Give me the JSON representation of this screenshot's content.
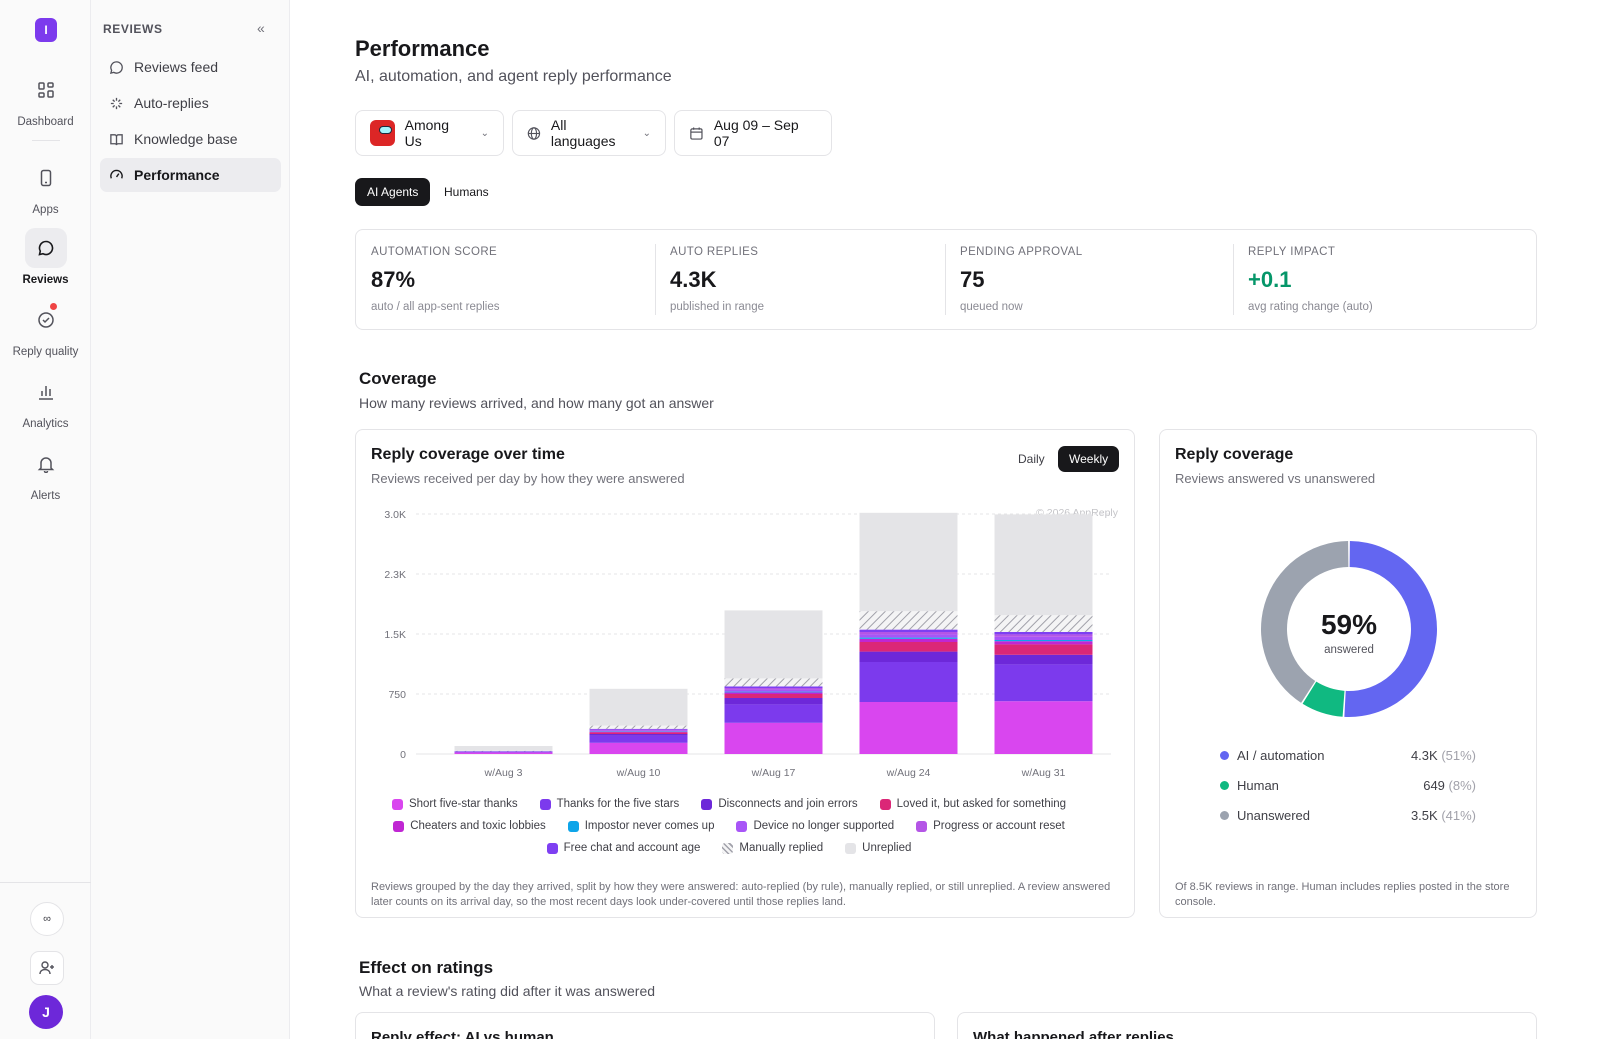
{
  "rail": {
    "logo": "I",
    "items": [
      {
        "label": "Dashboard",
        "icon": "dashboard-icon"
      },
      {
        "label": "Apps",
        "icon": "phone-icon"
      },
      {
        "label": "Reviews",
        "icon": "chat-icon"
      },
      {
        "label": "Reply quality",
        "icon": "badge-check-icon"
      },
      {
        "label": "Analytics",
        "icon": "bar-chart-icon"
      },
      {
        "label": "Alerts",
        "icon": "bell-icon"
      }
    ],
    "bottom_infinity": "∞",
    "avatar": "J"
  },
  "sidebar": {
    "heading": "REVIEWS",
    "items": [
      {
        "label": "Reviews feed",
        "icon": "message-icon"
      },
      {
        "label": "Auto-replies",
        "icon": "sparkles-icon"
      },
      {
        "label": "Knowledge base",
        "icon": "book-icon"
      },
      {
        "label": "Performance",
        "icon": "gauge-icon"
      }
    ]
  },
  "page": {
    "title": "Performance",
    "subtitle": "AI, automation, and agent reply performance"
  },
  "filters": {
    "app": "Among Us",
    "language": "All languages",
    "date_range": "Aug 09 – Sep 07"
  },
  "segments": {
    "ai": "AI Agents",
    "humans": "Humans"
  },
  "kpis": [
    {
      "label": "AUTOMATION SCORE",
      "value": "87%",
      "caption": "auto / all app-sent replies"
    },
    {
      "label": "AUTO REPLIES",
      "value": "4.3K",
      "caption": "published in range"
    },
    {
      "label": "PENDING APPROVAL",
      "value": "75",
      "caption": "queued now"
    },
    {
      "label": "REPLY IMPACT",
      "value": "+0.1",
      "caption": "avg rating change (auto)"
    }
  ],
  "coverage": {
    "title": "Coverage",
    "subtitle": "How many reviews arrived, and how many got an answer"
  },
  "chart_card": {
    "title": "Reply coverage over time",
    "subtitle": "Reviews received per day by how they were answered",
    "toggle_daily": "Daily",
    "toggle_weekly": "Weekly",
    "watermark": "© 2026 AppReply",
    "note": "Reviews grouped by the day they arrived, split by how they were answered: auto-replied (by rule), manually replied, or still unreplied. A review answered later counts on its arrival day, so the most recent days look under-covered until those replies land."
  },
  "chart_data": {
    "type": "bar",
    "stacked": true,
    "categories": [
      "w/Aug 3",
      "w/Aug 10",
      "w/Aug 17",
      "w/Aug 24",
      "w/Aug 31"
    ],
    "y_ticks": [
      "0",
      "750",
      "1.5K",
      "2.3K",
      "3.0K"
    ],
    "ylim": [
      0,
      3000
    ],
    "grid": true,
    "series": [
      {
        "name": "Short five-star thanks",
        "color": "#d946ef",
        "values": [
          20,
          140,
          390,
          650,
          660
        ]
      },
      {
        "name": "Thanks for the five stars",
        "color": "#7c3aed",
        "values": [
          15,
          90,
          230,
          500,
          460
        ]
      },
      {
        "name": "Disconnects and join errors",
        "color": "#6d28d9",
        "values": [
          0,
          20,
          80,
          130,
          120
        ]
      },
      {
        "name": "Loved it, but asked for something",
        "color": "#db2777",
        "values": [
          0,
          20,
          50,
          120,
          130
        ]
      },
      {
        "name": "Cheaters and toxic lobbies",
        "color": "#c026d3",
        "values": [
          0,
          10,
          20,
          40,
          40
        ]
      },
      {
        "name": "Impostor never comes up",
        "color": "#0ea5e9",
        "values": [
          0,
          5,
          10,
          15,
          15
        ]
      },
      {
        "name": "Device no longer supported",
        "color": "#a855f7",
        "values": [
          0,
          10,
          25,
          40,
          40
        ]
      },
      {
        "name": "Progress or account reset",
        "color": "#b455e6",
        "values": [
          0,
          10,
          20,
          30,
          30
        ]
      },
      {
        "name": "Free chat and account age",
        "color": "#7e3ff2",
        "values": [
          0,
          10,
          20,
          30,
          30
        ]
      },
      {
        "name": "Manually replied",
        "color": "hatch",
        "values": [
          5,
          40,
          100,
          230,
          210
        ]
      },
      {
        "name": "Unreplied",
        "color": "#e4e4e7",
        "values": [
          60,
          460,
          850,
          1230,
          1260
        ]
      }
    ]
  },
  "donut_card": {
    "title": "Reply coverage",
    "subtitle": "Reviews answered vs unanswered",
    "center_value": "59%",
    "center_label": "answered",
    "rows": [
      {
        "name": "AI / automation",
        "value": "4.3K",
        "pct": "(51%)",
        "fraction": 0.51,
        "color": "#6366f1"
      },
      {
        "name": "Human",
        "value": "649",
        "pct": "(8%)",
        "fraction": 0.08,
        "color": "#10b981"
      },
      {
        "name": "Unanswered",
        "value": "3.5K",
        "pct": "(41%)",
        "fraction": 0.41,
        "color": "#9ca3af"
      }
    ],
    "note": "Of 8.5K reviews in range. Human includes replies posted in the store console."
  },
  "ratings": {
    "title": "Effect on ratings",
    "subtitle": "What a review's rating did after it was answered",
    "card1_title": "Reply effect: AI vs human",
    "card2_title": "What happened after replies"
  }
}
